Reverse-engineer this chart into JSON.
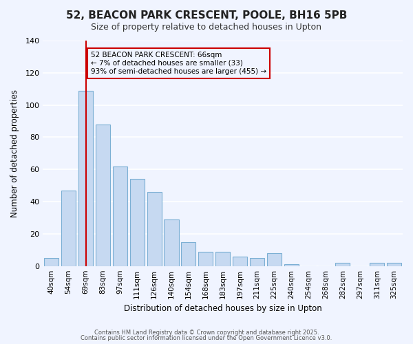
{
  "title_line1": "52, BEACON PARK CRESCENT, POOLE, BH16 5PB",
  "title_line2": "Size of property relative to detached houses in Upton",
  "xlabel": "Distribution of detached houses by size in Upton",
  "ylabel": "Number of detached properties",
  "bar_labels": [
    "40sqm",
    "54sqm",
    "69sqm",
    "83sqm",
    "97sqm",
    "111sqm",
    "126sqm",
    "140sqm",
    "154sqm",
    "168sqm",
    "183sqm",
    "197sqm",
    "211sqm",
    "225sqm",
    "240sqm",
    "254sqm",
    "268sqm",
    "282sqm",
    "297sqm",
    "311sqm",
    "325sqm"
  ],
  "bar_values": [
    5,
    47,
    109,
    88,
    62,
    54,
    46,
    29,
    15,
    9,
    9,
    6,
    5,
    8,
    1,
    0,
    0,
    2,
    0,
    2,
    2
  ],
  "bar_color": "#c6d9f1",
  "bar_edge_color": "#7bafd4",
  "ylim": [
    0,
    140
  ],
  "yticks": [
    0,
    20,
    40,
    60,
    80,
    100,
    120,
    140
  ],
  "vline_x_index": 2,
  "vline_color": "#cc0000",
  "annotation_text": "52 BEACON PARK CRESCENT: 66sqm\n← 7% of detached houses are smaller (33)\n93% of semi-detached houses are larger (455) →",
  "annotation_box_edge": "#cc0000",
  "footer_line1": "Contains HM Land Registry data © Crown copyright and database right 2025.",
  "footer_line2": "Contains public sector information licensed under the Open Government Licence v3.0.",
  "background_color": "#f0f4ff",
  "grid_color": "#ffffff"
}
